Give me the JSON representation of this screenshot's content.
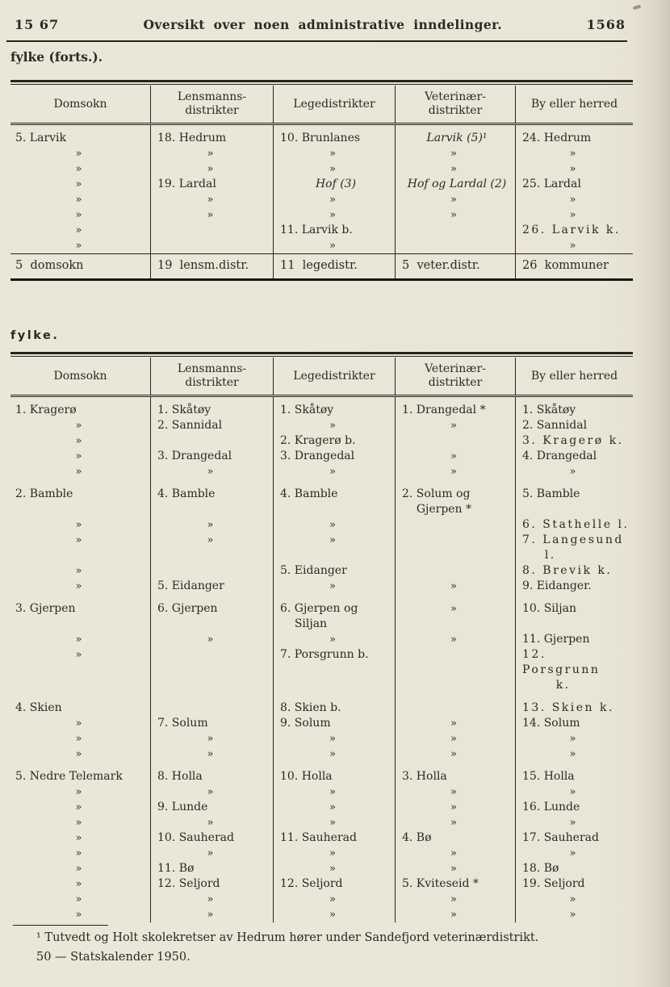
{
  "page": {
    "left_page_number": "15 67",
    "right_page_number": "1568",
    "running_title": "Oversikt over noen administrative inndelinger.",
    "section_continued_label": "fylke (forts.).",
    "section_label": "fylke.",
    "footnote_line1": "¹ Tutvedt og Holt skolekretser av Hedrum hører under Sandefjord veterinærdistrikt.",
    "footnote_line2": "50 — Statskalender 1950."
  },
  "colors": {
    "paper": "#e9e5d7",
    "ink": "#2b2a22",
    "rule": "#26251c"
  },
  "tables": [
    {
      "name": "fylke-forts-table",
      "headers": [
        "Domsokn",
        "Lensmanns-\ndistrikter",
        "Legedistrikter",
        "Veterinær-\ndistrikter",
        "By eller herred"
      ],
      "rows": [
        [
          "5. Larvik",
          "18. Hedrum",
          "10. Brunlanes",
          {
            "t": "Larvik (5)¹",
            "i": true,
            "c": true
          },
          "24. Hedrum"
        ],
        [
          "»",
          "»",
          "»",
          "»",
          "»"
        ],
        [
          "»",
          "»",
          "»",
          "»",
          "»"
        ],
        [
          "»",
          "19. Lardal",
          {
            "t": "Hof (3)",
            "i": true,
            "c": true
          },
          {
            "t": "Hof og Lardal (2)",
            "i": true,
            "c": true
          },
          "25. Lardal"
        ],
        [
          "»",
          "»",
          "»",
          "»",
          "»"
        ],
        [
          "»",
          "»",
          "»",
          "»",
          "»"
        ],
        [
          "»",
          "",
          "11. Larvik b.",
          "",
          {
            "t": "26. Larvik k.",
            "sp": true
          }
        ],
        [
          "»",
          "",
          "»",
          "",
          "»"
        ]
      ],
      "summary": [
        "5  domsokn",
        "19  lensm.distr.",
        "11  legedistr.",
        "5  veter.distr.",
        "26  kommuner"
      ]
    },
    {
      "name": "fylke-table",
      "headers": [
        "Domsokn",
        "Lensmanns-\ndistrikter",
        "Legedistrikter",
        "Veterinær-\ndistrikter",
        "By eller herred"
      ],
      "rows": [
        [
          "1. Kragerø",
          "1. Skåtøy",
          "1. Skåtøy",
          "1. Drangedal *",
          "1. Skåtøy"
        ],
        [
          "»",
          "2. Sannidal",
          "»",
          "»",
          "2. Sannidal"
        ],
        [
          "»",
          "",
          "2. Kragerø b.",
          "",
          {
            "t": "3. Kragerø k.",
            "sp": true
          }
        ],
        [
          "»",
          "3. Drangedal",
          "3. Drangedal",
          "»",
          "4. Drangedal"
        ],
        [
          "»",
          "»",
          "»",
          "»",
          "»"
        ],
        {
          "gap": true,
          "cells": [
            "2. Bamble",
            "4. Bamble",
            "4. Bamble",
            "2. Solum og\n    Gjerpen *",
            "5. Bamble"
          ]
        },
        [
          "»",
          "»",
          "»",
          "",
          {
            "t": "6. Stathelle l.",
            "sp": true
          }
        ],
        [
          "»",
          "»",
          "»",
          "",
          {
            "t": "7. Langesund\n    l.",
            "sp": true
          }
        ],
        [
          "»",
          "",
          "5. Eidanger",
          "",
          {
            "t": "8. Brevik k.",
            "sp": true
          }
        ],
        [
          "»",
          "5. Eidanger",
          "»",
          "»",
          "9. Eidanger."
        ],
        {
          "gap": true,
          "cells": [
            "3. Gjerpen",
            "6. Gjerpen",
            "6. Gjerpen og\n    Siljan",
            "»",
            "10. Siljan"
          ]
        },
        [
          "»",
          "»",
          "»",
          "»",
          "11. Gjerpen"
        ],
        [
          "»",
          "",
          "7. Porsgrunn b.",
          "",
          {
            "t": "12. Porsgrunn\n      k.",
            "sp": true
          }
        ],
        {
          "gap": true,
          "cells": [
            "4. Skien",
            "",
            "8. Skien b.",
            "",
            {
              "t": "13. Skien k.",
              "sp": true
            }
          ]
        },
        [
          "»",
          "7. Solum",
          "9. Solum",
          "»",
          "14. Solum"
        ],
        [
          "»",
          "»",
          "»",
          "»",
          "»"
        ],
        [
          "»",
          "»",
          "»",
          "»",
          "»"
        ],
        {
          "gap": true,
          "cells": [
            "5. Nedre Telemark",
            "8. Holla",
            "10. Holla",
            "3. Holla",
            "15. Holla"
          ]
        },
        [
          "»",
          "»",
          "»",
          "»",
          "»"
        ],
        [
          "»",
          "9. Lunde",
          "»",
          "»",
          "16. Lunde"
        ],
        [
          "»",
          "»",
          "»",
          "»",
          "»"
        ],
        [
          "»",
          "10. Sauherad",
          "11. Sauherad",
          "4. Bø",
          "17. Sauherad"
        ],
        [
          "»",
          "»",
          "»",
          "»",
          "»"
        ],
        [
          "»",
          "11. Bø",
          "»",
          "»",
          "18. Bø"
        ],
        [
          "»",
          "12. Seljord",
          "12. Seljord",
          "5. Kviteseid *",
          "19. Seljord"
        ],
        [
          "»",
          "»",
          "»",
          "»",
          "»"
        ],
        [
          "»",
          "»",
          "»",
          "»",
          "»"
        ]
      ]
    }
  ]
}
